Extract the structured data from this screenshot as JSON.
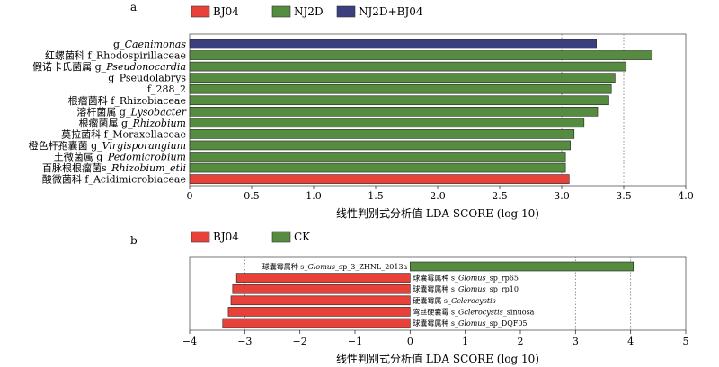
{
  "colors": {
    "BJ04": "#e8413a",
    "NJ2D": "#568c3f",
    "NJ2D+BJ04": "#3c3f7e",
    "CK": "#568c3f"
  },
  "chart_data": [
    {
      "panel": "a",
      "type": "bar",
      "orientation": "horizontal",
      "legend": [
        {
          "name": "BJ04",
          "color": "#e8413a"
        },
        {
          "name": "NJ2D",
          "color": "#568c3f"
        },
        {
          "name": "NJ2D+BJ04",
          "color": "#3c3f7e"
        }
      ],
      "bars": [
        {
          "label": [
            {
              "t": "g_"
            },
            {
              "t": "Caenimonas",
              "i": true
            }
          ],
          "value": 3.28,
          "group": "NJ2D+BJ04"
        },
        {
          "label": [
            {
              "t": "红螺菌科 f_Rhodospirillaceae"
            }
          ],
          "value": 3.73,
          "group": "NJ2D"
        },
        {
          "label": [
            {
              "t": "假诺卡氏菌属 g_"
            },
            {
              "t": "Pseudonocardia",
              "i": true
            }
          ],
          "value": 3.52,
          "group": "NJ2D"
        },
        {
          "label": [
            {
              "t": "g_Pseudolabrys"
            }
          ],
          "value": 3.43,
          "group": "NJ2D"
        },
        {
          "label": [
            {
              "t": "f_288_2"
            }
          ],
          "value": 3.4,
          "group": "NJ2D"
        },
        {
          "label": [
            {
              "t": "根瘤菌科 f_Rhizobiaceae"
            }
          ],
          "value": 3.38,
          "group": "NJ2D"
        },
        {
          "label": [
            {
              "t": "溶杆菌属 g_"
            },
            {
              "t": "Lysobacter",
              "i": true
            }
          ],
          "value": 3.29,
          "group": "NJ2D"
        },
        {
          "label": [
            {
              "t": "根瘤菌属 g_"
            },
            {
              "t": "Rhizobium",
              "i": true
            }
          ],
          "value": 3.18,
          "group": "NJ2D"
        },
        {
          "label": [
            {
              "t": "莫拉菌科 f_Moraxellaceae"
            }
          ],
          "value": 3.1,
          "group": "NJ2D"
        },
        {
          "label": [
            {
              "t": "橙色杆孢囊菌 g_"
            },
            {
              "t": "Virgisporangium",
              "i": true
            }
          ],
          "value": 3.07,
          "group": "NJ2D"
        },
        {
          "label": [
            {
              "t": "土微菌属 g_"
            },
            {
              "t": "Pedomicrobium",
              "i": true
            }
          ],
          "value": 3.03,
          "group": "NJ2D"
        },
        {
          "label": [
            {
              "t": "百脉根根瘤菌s_"
            },
            {
              "t": "Rhizobium_etli",
              "i": true
            }
          ],
          "value": 3.03,
          "group": "NJ2D"
        },
        {
          "label": [
            {
              "t": "酸微菌科 f_Acidimicrobiaceae"
            }
          ],
          "value": 3.06,
          "group": "BJ04"
        }
      ],
      "xlim": [
        0,
        4
      ],
      "xticks": [
        "0",
        "0.5",
        "1.0",
        "1.5",
        "2.0",
        "2.5",
        "3.0",
        "3.5",
        "4.0"
      ],
      "xlabel": "线性判别式分析值 LDA SCORE (log 10)",
      "dashed_gridlines_at": [
        3.0,
        3.5
      ]
    },
    {
      "panel": "b",
      "type": "bar",
      "orientation": "horizontal",
      "legend": [
        {
          "name": "BJ04",
          "color": "#e8413a"
        },
        {
          "name": "CK",
          "color": "#568c3f"
        }
      ],
      "bars": [
        {
          "label": [
            {
              "t": "球囊霉属种 s_"
            },
            {
              "t": "Glomus",
              "i": true
            },
            {
              "t": "_sp_3_ZHNL_2013a"
            }
          ],
          "value": 4.05,
          "group": "CK"
        },
        {
          "label": [
            {
              "t": "球囊霉属种 s_"
            },
            {
              "t": "Glomus",
              "i": true
            },
            {
              "t": "_sp_rp65"
            }
          ],
          "value": -3.15,
          "group": "BJ04"
        },
        {
          "label": [
            {
              "t": "球囊霉属种 s_"
            },
            {
              "t": "Glomus",
              "i": true
            },
            {
              "t": "_sp_rp10"
            }
          ],
          "value": -3.22,
          "group": "BJ04"
        },
        {
          "label": [
            {
              "t": "硬囊霉属 s_"
            },
            {
              "t": "Gclerocystis",
              "i": true
            }
          ],
          "value": -3.25,
          "group": "BJ04"
        },
        {
          "label": [
            {
              "t": "弯丝硬囊霉 s_"
            },
            {
              "t": "Gclerocystis",
              "i": true
            },
            {
              "t": "_sinuosa"
            }
          ],
          "value": -3.3,
          "group": "BJ04"
        },
        {
          "label": [
            {
              "t": "球囊霉属种 s_"
            },
            {
              "t": "Glomus",
              "i": true
            },
            {
              "t": "_sp_DQF05"
            }
          ],
          "value": -3.4,
          "group": "BJ04"
        }
      ],
      "xlim": [
        -4,
        5
      ],
      "xticks": [
        "−4",
        "−3",
        "−2",
        "−1",
        "0",
        "1",
        "2",
        "3",
        "4",
        "5"
      ],
      "xlabel": "线性判别式分析值 LDA SCORE (log 10)",
      "dashed_gridlines_at": [
        -3,
        3,
        4
      ]
    }
  ]
}
